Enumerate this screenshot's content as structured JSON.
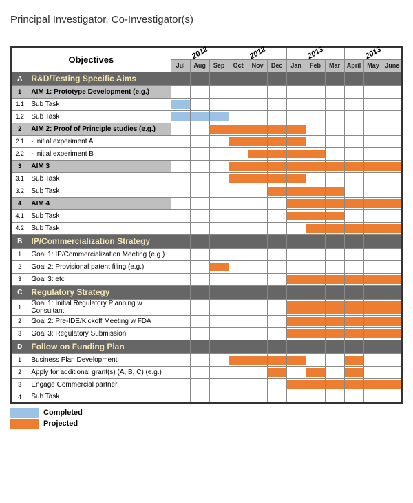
{
  "title": "Principal Investigator, Co-Investigator(s)",
  "colors": {
    "completed": "#9cc3e6",
    "projected": "#ed7d31",
    "section_bg": "#666666",
    "section_text": "#f5e6b3",
    "aim_bg": "#bfbfbf",
    "month_bg": "#bfbfbf",
    "border": "#888888"
  },
  "objectives_header": "Objectives",
  "years": [
    "2012",
    "2012",
    "2013",
    "2013"
  ],
  "months": [
    "Jul",
    "Aug",
    "Sep",
    "Oct",
    "Nov",
    "Dec",
    "Jan",
    "Feb",
    "Mar",
    "April",
    "May",
    "June"
  ],
  "legend": [
    {
      "label": "Completed",
      "color": "#9cc3e6"
    },
    {
      "label": "Projected",
      "color": "#ed7d31"
    }
  ],
  "rows": [
    {
      "type": "section",
      "id": "A",
      "label": "R&D/Testing Specific Aims",
      "bars": []
    },
    {
      "type": "aim",
      "id": "1",
      "label": "AIM 1: Prototype Development (e.g.)",
      "bars": []
    },
    {
      "type": "task",
      "id": "1.1",
      "label": "Sub Task",
      "bars": [
        {
          "start": 0,
          "end": 1,
          "c": "completed"
        }
      ]
    },
    {
      "type": "task",
      "id": "1.2",
      "label": "Sub Task",
      "bars": [
        {
          "start": 0,
          "end": 3,
          "c": "completed"
        }
      ]
    },
    {
      "type": "aim",
      "id": "2",
      "label": "AIM 2: Proof of Principle studies (e.g.)",
      "bars": [
        {
          "start": 2,
          "end": 7,
          "c": "projected"
        }
      ]
    },
    {
      "type": "task",
      "id": "2.1",
      "label": "  - initial experiment A",
      "bars": [
        {
          "start": 3,
          "end": 7,
          "c": "projected"
        }
      ]
    },
    {
      "type": "task",
      "id": "2.2",
      "label": "  - initial experiment B",
      "bars": [
        {
          "start": 4,
          "end": 8,
          "c": "projected"
        }
      ]
    },
    {
      "type": "aim",
      "id": "3",
      "label": "AIM 3",
      "bars": [
        {
          "start": 3,
          "end": 12,
          "c": "projected"
        }
      ]
    },
    {
      "type": "task",
      "id": "3.1",
      "label": "Sub Task",
      "bars": [
        {
          "start": 3,
          "end": 7,
          "c": "projected"
        }
      ]
    },
    {
      "type": "task",
      "id": "3.2",
      "label": "Sub Task",
      "bars": [
        {
          "start": 5,
          "end": 9,
          "c": "projected"
        }
      ]
    },
    {
      "type": "aim",
      "id": "4",
      "label": "AIM 4",
      "bars": [
        {
          "start": 6,
          "end": 12,
          "c": "projected"
        }
      ]
    },
    {
      "type": "task",
      "id": "4.1",
      "label": "Sub Task",
      "bars": [
        {
          "start": 6,
          "end": 9,
          "c": "projected"
        }
      ]
    },
    {
      "type": "task",
      "id": "4.2",
      "label": "Sub Task",
      "bars": [
        {
          "start": 7,
          "end": 12,
          "c": "projected"
        }
      ]
    },
    {
      "type": "section",
      "id": "B",
      "label": "IP/Commercialization Strategy",
      "bars": []
    },
    {
      "type": "task",
      "id": "1",
      "label": "Goal 1: IP/Commercialization Meeting (e.g.)",
      "bars": []
    },
    {
      "type": "task",
      "id": "2",
      "label": "Goal 2: Provisional patent filing (e.g.)",
      "bars": [
        {
          "start": 2,
          "end": 3,
          "c": "projected"
        }
      ]
    },
    {
      "type": "task",
      "id": "3",
      "label": "Goal 3: etc",
      "bars": [
        {
          "start": 6,
          "end": 12,
          "c": "projected"
        }
      ]
    },
    {
      "type": "section",
      "id": "C",
      "label": "Regulatory Strategy",
      "bars": []
    },
    {
      "type": "task",
      "id": "1",
      "label": "Goal 1: Initial Regulatory Planning w Consultant",
      "bars": [
        {
          "start": 6,
          "end": 12,
          "c": "projected"
        }
      ]
    },
    {
      "type": "task",
      "id": "2",
      "label": "Goal 2: Pre-IDE/Kickoff Meeting w FDA",
      "bars": [
        {
          "start": 6,
          "end": 12,
          "c": "projected"
        }
      ]
    },
    {
      "type": "task",
      "id": "3",
      "label": "Goal 3: Regulatory Submission",
      "bars": [
        {
          "start": 6,
          "end": 12,
          "c": "projected"
        }
      ]
    },
    {
      "type": "section",
      "id": "D",
      "label": "Follow on Funding Plan",
      "bars": []
    },
    {
      "type": "task",
      "id": "1",
      "label": "Business Plan Development",
      "bars": [
        {
          "start": 3,
          "end": 7,
          "c": "projected"
        },
        {
          "start": 9,
          "end": 10,
          "c": "projected"
        }
      ]
    },
    {
      "type": "task",
      "id": "2",
      "label": "Apply for additional grant(s) (A, B, C) (e.g.)",
      "bars": [
        {
          "start": 5,
          "end": 6,
          "c": "projected"
        },
        {
          "start": 7,
          "end": 8,
          "c": "projected"
        },
        {
          "start": 9,
          "end": 10,
          "c": "projected"
        }
      ]
    },
    {
      "type": "task",
      "id": "3",
      "label": "Engage Commercial partner",
      "bars": [
        {
          "start": 6,
          "end": 12,
          "c": "projected"
        }
      ]
    },
    {
      "type": "task",
      "id": "4",
      "label": "Sub Task",
      "bars": []
    }
  ]
}
